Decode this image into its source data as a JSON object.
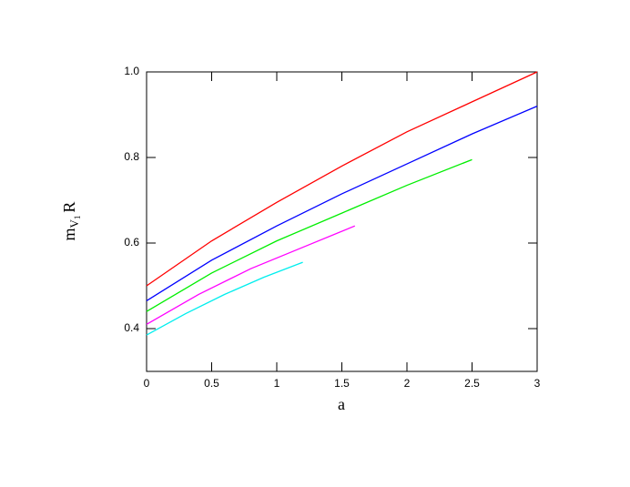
{
  "chart_data": {
    "type": "line",
    "xlabel": "a",
    "ylabel": [
      "m",
      "V",
      "1",
      "R"
    ],
    "xlim": [
      0,
      3
    ],
    "ylim": [
      0.3,
      1.0
    ],
    "xticks": [
      0,
      0.5,
      1,
      1.5,
      2,
      2.5,
      3
    ],
    "yticks": [
      0.4,
      0.6,
      0.8,
      {
        "value": 1,
        "label": "1.0"
      }
    ],
    "series": [
      {
        "color": "#ff0000",
        "x": [
          0,
          0.5,
          1,
          1.5,
          2,
          2.5,
          3
        ],
        "values": [
          0.5,
          0.605,
          0.695,
          0.78,
          0.86,
          0.93,
          1.0
        ]
      },
      {
        "color": "#0000ff",
        "x": [
          0,
          0.5,
          1,
          1.5,
          2,
          2.5,
          3
        ],
        "values": [
          0.465,
          0.56,
          0.64,
          0.715,
          0.785,
          0.855,
          0.92
        ]
      },
      {
        "color": "#00ee00",
        "x": [
          0,
          0.5,
          1,
          1.5,
          2,
          2.5
        ],
        "values": [
          0.44,
          0.53,
          0.605,
          0.67,
          0.735,
          0.795
        ]
      },
      {
        "color": "#ff00ff",
        "x": [
          0,
          0.4,
          0.8,
          1.2,
          1.6
        ],
        "values": [
          0.41,
          0.48,
          0.54,
          0.59,
          0.64
        ]
      },
      {
        "color": "#00eeee",
        "x": [
          0,
          0.3,
          0.6,
          0.9,
          1.2
        ],
        "values": [
          0.385,
          0.435,
          0.48,
          0.52,
          0.555
        ]
      }
    ]
  }
}
